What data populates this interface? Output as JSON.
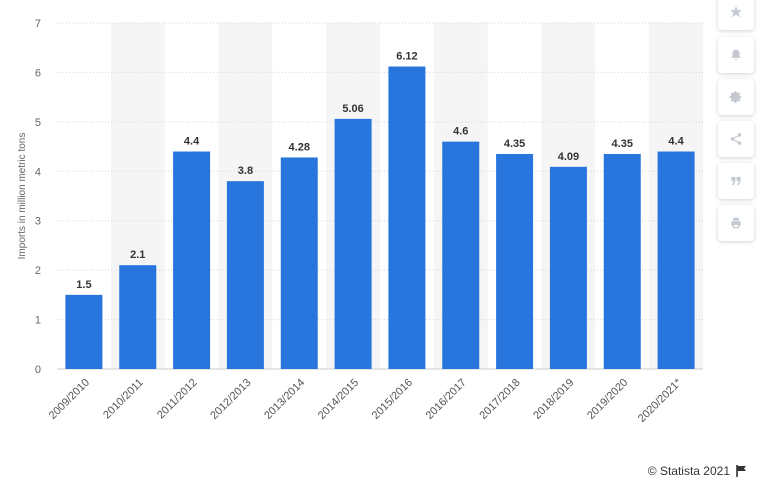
{
  "chart_data": {
    "type": "bar",
    "categories": [
      "2009/2010",
      "2010/2011",
      "2011/2012",
      "2012/2013",
      "2013/2014",
      "2014/2015",
      "2015/2016",
      "2016/2017",
      "2017/2018",
      "2018/2019",
      "2019/2020",
      "2020/2021*"
    ],
    "values": [
      1.5,
      2.1,
      4.4,
      3.8,
      4.28,
      5.06,
      6.12,
      4.6,
      4.35,
      4.09,
      4.35,
      4.4
    ],
    "value_labels": [
      "1.5",
      "2.1",
      "4.4",
      "3.8",
      "4.28",
      "5.06",
      "6.12",
      "4.6",
      "4.35",
      "4.09",
      "4.35",
      "4.4"
    ],
    "title": "",
    "xlabel": "",
    "ylabel": "Imports in million metric tons",
    "ylim": [
      0,
      7
    ],
    "yticks": [
      "0",
      "1",
      "2",
      "3",
      "4",
      "5",
      "6",
      "7"
    ],
    "grid": true,
    "bar_color": "#2876dd",
    "band_color": "#f5f5f5"
  },
  "toolbar": {
    "icons": [
      "star-icon",
      "bell-icon",
      "gear-icon",
      "share-icon",
      "quote-icon",
      "print-icon"
    ],
    "icon_color": "#c4c9d0"
  },
  "credit": {
    "text": "© Statista 2021",
    "flag_icon": "flag-icon"
  }
}
